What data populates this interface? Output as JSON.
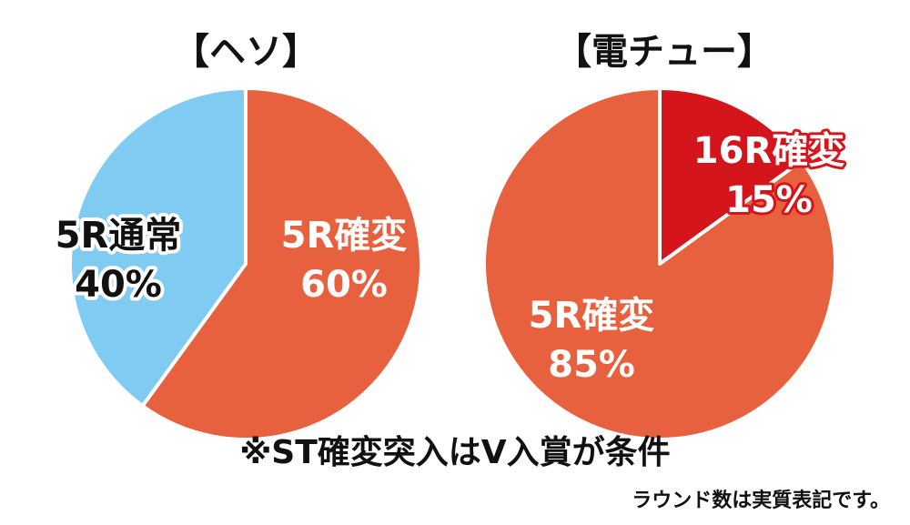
{
  "chart_data": [
    {
      "type": "pie",
      "title": "【ヘソ】",
      "slices": [
        {
          "label": "5R確変",
          "value": 60,
          "value_label": "60%",
          "color": "#e8613f"
        },
        {
          "label": "5R通常",
          "value": 40,
          "value_label": "40%",
          "color": "#7fcbf2"
        }
      ]
    },
    {
      "type": "pie",
      "title": "【電チュー】",
      "slices": [
        {
          "label": "16R確変",
          "value": 15,
          "value_label": "15%",
          "color": "#d4151c"
        },
        {
          "label": "5R確変",
          "value": 85,
          "value_label": "85%",
          "color": "#e8613f"
        }
      ]
    }
  ],
  "footnote": "※ST確変突入はV入賞が条件",
  "note": "ラウンド数は実質表記です。"
}
